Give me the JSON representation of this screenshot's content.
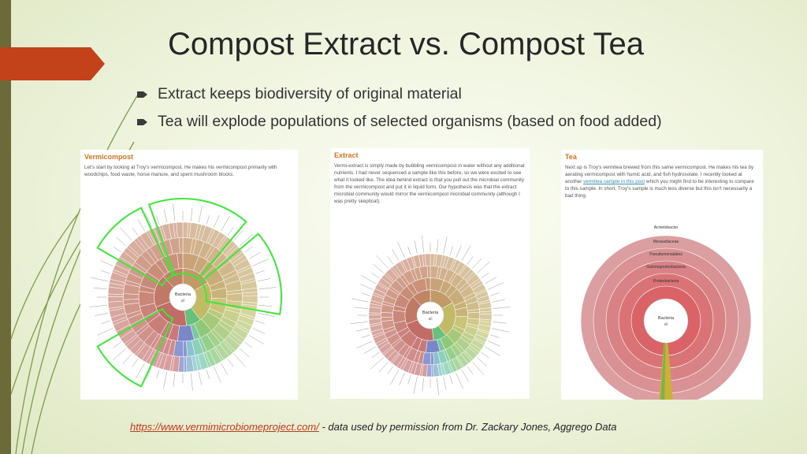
{
  "slide": {
    "title": "Compost Extract vs. Compost Tea",
    "bullets": [
      "Extract keeps biodiversity of original material",
      "Tea will explode populations of selected organisms (based on food added)"
    ]
  },
  "panels": [
    {
      "heading": "Vermicompost",
      "description": "Let's start by looking at Troy's vermicompost. He makes his vermicompost  primarily with woodchips, food waste, horse manure, and spent mushroom blocks.",
      "center_labels": [
        "Bacteria",
        "all"
      ]
    },
    {
      "heading": "Extract",
      "description": "Vermi-extract is simply made by bubbling vermicompost in water without any additional nutrients. I had never sequenced a sample like this before, so we were excited to see what it looked like. The idea behind extract is that you pull out the microbial community from the vermicompost and put it in liquid form. Our hypothesis was that the extract microbial community would mirror the vermicompost microbial community (although I was pretty skeptical).",
      "center_labels": [
        "Bacteria",
        "all"
      ]
    },
    {
      "heading": "Tea",
      "description_before": "Next up is Troy's vermitea brewed from this same vermicompost. He makes his tea by aerating vermicompost with humic acid, and fish hydrosolate. I recently looked at another",
      "description_link": "vermitea sample in this post",
      "description_after": "which you might find to be interesting to compare to this sample. In short, Troy's sample is much less diverse but this isn't necessarily a bad thing.",
      "center_labels": [
        "Bacteria",
        "all"
      ],
      "ring_labels": [
        "Proteobacteria",
        "Gammaproteobacteria",
        "Pseudomonadales",
        "Moraxellaceae",
        "Acinetobacter"
      ]
    }
  ],
  "footer": {
    "link": "https://www.vermimicrobiomeproject.com/",
    "note": "- data used by permission from Dr. Zackary Jones, Aggrego Data"
  }
}
